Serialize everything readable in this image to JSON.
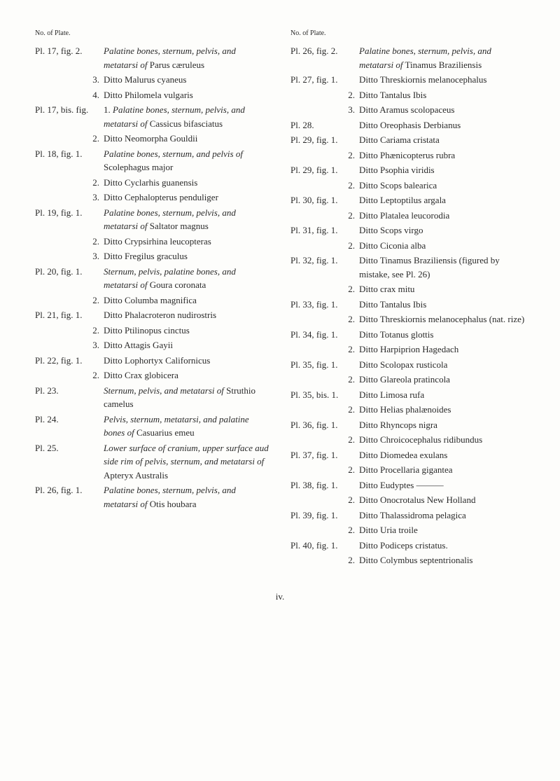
{
  "header": "No. of Plate.",
  "left": [
    {
      "label": "Pl. 17, fig. 2.",
      "sub": false,
      "lines": [
        "<em>Palatine bones, sternum, pelvis, and metatarsi of</em> Parus cæruleus"
      ]
    },
    {
      "label": "3.",
      "sub": true,
      "lines": [
        "Ditto Malurus cyaneus"
      ]
    },
    {
      "label": "4.",
      "sub": true,
      "lines": [
        "Ditto Philomela vulgaris"
      ]
    },
    {
      "label": "Pl. 17, bis. fig.",
      "sub": false,
      "lines": [
        "1. <em>Palatine bones, sternum, pelvis, and metatarsi of</em> Cassicus bifasciatus"
      ]
    },
    {
      "label": "2.",
      "sub": true,
      "lines": [
        "Ditto Neomorpha Gouldii"
      ]
    },
    {
      "label": "Pl. 18, fig. 1.",
      "sub": false,
      "lines": [
        "<em>Palatine bones, sternum, and pelvis of</em> Scolephagus major"
      ]
    },
    {
      "label": "2.",
      "sub": true,
      "lines": [
        "Ditto Cyclarhis guanensis"
      ]
    },
    {
      "label": "3.",
      "sub": true,
      "lines": [
        "Ditto Cephalopterus penduliger"
      ]
    },
    {
      "label": "Pl. 19, fig. 1.",
      "sub": false,
      "lines": [
        "<em>Palatine bones, sternum, pelvis, and metatarsi of</em> Saltator magnus"
      ]
    },
    {
      "label": "2.",
      "sub": true,
      "lines": [
        "Ditto Crypsirhina leucopteras"
      ]
    },
    {
      "label": "3.",
      "sub": true,
      "lines": [
        "Ditto Fregilus graculus"
      ]
    },
    {
      "label": "Pl. 20, fig. 1.",
      "sub": false,
      "lines": [
        "<em>Sternum, pelvis, palatine bones, and metatarsi of</em> Goura coronata"
      ]
    },
    {
      "label": "2.",
      "sub": true,
      "lines": [
        "Ditto Columba magnifica"
      ]
    },
    {
      "label": "Pl. 21, fig. 1.",
      "sub": false,
      "lines": [
        "Ditto Phalacroteron nudirostris"
      ]
    },
    {
      "label": "2.",
      "sub": true,
      "lines": [
        "Ditto Ptilinopus cinctus"
      ]
    },
    {
      "label": "3.",
      "sub": true,
      "lines": [
        "Ditto Attagis Gayii"
      ]
    },
    {
      "label": "Pl. 22, fig. 1.",
      "sub": false,
      "lines": [
        "Ditto Lophortyx Californicus"
      ]
    },
    {
      "label": "2.",
      "sub": true,
      "lines": [
        "Ditto Crax globicera"
      ]
    },
    {
      "label": "Pl. 23.",
      "sub": false,
      "lines": [
        "<em>Sternum, pelvis, and metatarsi of</em> Struthio camelus"
      ]
    },
    {
      "label": "Pl. 24.",
      "sub": false,
      "lines": [
        "<em>Pelvis, sternum, metatarsi, and palatine bones of</em> Casuarius emeu"
      ]
    },
    {
      "label": "Pl. 25.",
      "sub": false,
      "lines": [
        "<em>Lower surface of cranium, upper surface aud side rim of pelvis, sternum, and metatarsi of</em> Apteryx Australis"
      ]
    },
    {
      "label": "Pl. 26, fig. 1.",
      "sub": false,
      "lines": [
        "<em>Palatine bones, sternum, pelvis, and metatarsi of</em> Otis houbara"
      ]
    }
  ],
  "right": [
    {
      "label": "Pl. 26, fig. 2.",
      "sub": false,
      "lines": [
        "<em>Palatine bones, sternum, pelvis, and metatarsi of</em> Tinamus Braziliensis"
      ]
    },
    {
      "label": "Pl. 27, fig. 1.",
      "sub": false,
      "lines": [
        "Ditto Threskiornis melanocephalus"
      ]
    },
    {
      "label": "2.",
      "sub": true,
      "lines": [
        "Ditto Tantalus Ibis"
      ]
    },
    {
      "label": "3.",
      "sub": true,
      "lines": [
        "Ditto Aramus scolopaceus"
      ]
    },
    {
      "label": "Pl. 28.",
      "sub": false,
      "lines": [
        "Ditto Oreophasis Derbianus"
      ]
    },
    {
      "label": "Pl. 29, fig. 1.",
      "sub": false,
      "lines": [
        "Ditto Cariama cristata"
      ]
    },
    {
      "label": "2.",
      "sub": true,
      "lines": [
        "Ditto Phænicopterus rubra"
      ]
    },
    {
      "label": "Pl. 29, fig. 1.",
      "sub": false,
      "lines": [
        "Ditto Psophia viridis"
      ]
    },
    {
      "label": "2.",
      "sub": true,
      "lines": [
        "Ditto Scops balearica"
      ]
    },
    {
      "label": "Pl. 30, fig. 1.",
      "sub": false,
      "lines": [
        "Ditto Leptoptilus argala"
      ]
    },
    {
      "label": "2.",
      "sub": true,
      "lines": [
        "Ditto Platalea leucorodia"
      ]
    },
    {
      "label": "Pl. 31, fig. 1.",
      "sub": false,
      "lines": [
        "Ditto Scops virgo"
      ]
    },
    {
      "label": "2.",
      "sub": true,
      "lines": [
        "Ditto Ciconia alba"
      ]
    },
    {
      "label": "Pl. 32, fig. 1.",
      "sub": false,
      "lines": [
        "Ditto Tinamus Braziliensis (figured by mistake, see Pl. 26)"
      ]
    },
    {
      "label": "2.",
      "sub": true,
      "lines": [
        "Ditto crax mitu"
      ]
    },
    {
      "label": "Pl. 33, fig. 1.",
      "sub": false,
      "lines": [
        "Ditto Tantalus Ibis"
      ]
    },
    {
      "label": "2.",
      "sub": true,
      "lines": [
        "Ditto Threskiornis melanocephalus (nat. rize)"
      ]
    },
    {
      "label": "Pl. 34, fig. 1.",
      "sub": false,
      "lines": [
        "Ditto Totanus glottis"
      ]
    },
    {
      "label": "2.",
      "sub": true,
      "lines": [
        "Ditto Harpiprion Hagedach"
      ]
    },
    {
      "label": "Pl. 35, fig. 1.",
      "sub": false,
      "lines": [
        "Ditto Scolopax rusticola"
      ]
    },
    {
      "label": "2.",
      "sub": true,
      "lines": [
        "Ditto Glareola pratincola"
      ]
    },
    {
      "label": "Pl. 35, bis. 1.",
      "sub": false,
      "lines": [
        "Ditto Limosa rufa"
      ]
    },
    {
      "label": "2.",
      "sub": true,
      "lines": [
        "Ditto Helias phalænoides"
      ]
    },
    {
      "label": "Pl. 36, fig. 1.",
      "sub": false,
      "lines": [
        "Ditto Rhyncops nigra"
      ]
    },
    {
      "label": "2.",
      "sub": true,
      "lines": [
        "Ditto Chroicocephalus ridibundus"
      ]
    },
    {
      "label": "Pl. 37, fig. 1.",
      "sub": false,
      "lines": [
        "Ditto Diomedea exulans"
      ]
    },
    {
      "label": "2.",
      "sub": true,
      "lines": [
        "Ditto Procellaria gigantea"
      ]
    },
    {
      "label": "Pl. 38, fig. 1.",
      "sub": false,
      "lines": [
        "Ditto Eudyptes ———"
      ]
    },
    {
      "label": "2.",
      "sub": true,
      "lines": [
        "Ditto Onocrotalus New Holland"
      ]
    },
    {
      "label": "Pl. 39, fig. 1.",
      "sub": false,
      "lines": [
        "Ditto Thalassidroma pelagica"
      ]
    },
    {
      "label": "2.",
      "sub": true,
      "lines": [
        "Ditto Uria troile"
      ]
    },
    {
      "label": "Pl. 40, fig. 1.",
      "sub": false,
      "lines": [
        "Ditto Podiceps cristatus."
      ]
    },
    {
      "label": "2.",
      "sub": true,
      "lines": [
        "Ditto Colymbus septentrionalis"
      ]
    }
  ],
  "footer": "iv."
}
